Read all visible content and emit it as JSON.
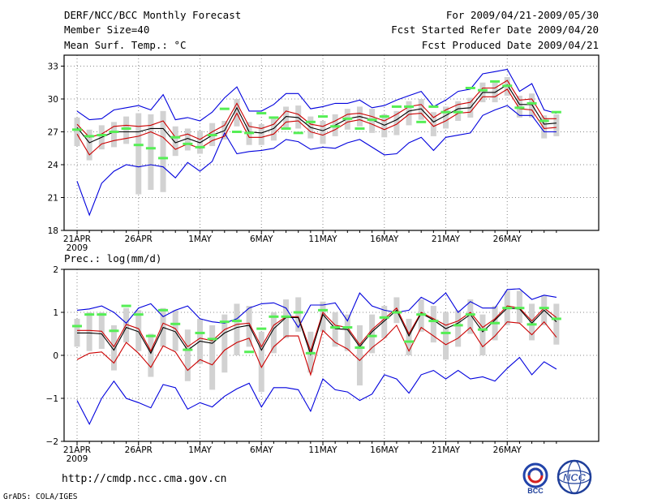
{
  "header": {
    "title": "DERF/NCC/BCC Monthly Forecast",
    "member_size": "Member Size=40",
    "variable": "Mean Surf. Temp.: °C",
    "forecast_period": "For 2009/04/21-2009/05/30",
    "start_date": "Fcst Started Refer Date 2009/04/20",
    "produced_date": "Fcst Produced Date 2009/04/21"
  },
  "footer": {
    "url": "http://cmdp.ncc.cma.gov.cn",
    "credit": "GrADS: COLA/IGES",
    "logo_bcc": "BCC",
    "logo_ncc": "NCC"
  },
  "colors": {
    "bar": "#d2d2d2",
    "green": "#55ee55",
    "blue": "#0000dd",
    "red": "#cc0000",
    "black": "#000000",
    "grid": "#888888"
  },
  "chart_data": [
    {
      "type": "line",
      "title": "Mean Surf. Temp.: °C",
      "ylabel": "°C",
      "ylim": [
        18,
        34
      ],
      "yticks": [
        18,
        21,
        24,
        27,
        30,
        33
      ],
      "x_tick_labels": [
        "21APR",
        "26APR",
        "1MAY",
        "6MAY",
        "11MAY",
        "16MAY",
        "21MAY",
        "26MAY"
      ],
      "x_year_label": "2009",
      "days": 40,
      "series": [
        {
          "name": "ensemble max",
          "color": "blue",
          "values": [
            28.9,
            28.1,
            28.2,
            29.0,
            29.2,
            29.4,
            29.0,
            30.4,
            28.1,
            28.3,
            28.0,
            28.8,
            30.1,
            31.1,
            28.9,
            28.9,
            29.5,
            30.5,
            30.5,
            29.1,
            29.3,
            29.6,
            29.6,
            29.9,
            29.2,
            29.4,
            29.9,
            30.3,
            30.7,
            29.3,
            29.9,
            30.7,
            30.9,
            32.3,
            32.5,
            32.7,
            30.7,
            31.4,
            29.0,
            28.7
          ]
        },
        {
          "name": "upper bound",
          "color": "red",
          "values": [
            27.7,
            26.5,
            26.8,
            27.5,
            27.6,
            27.5,
            27.6,
            28.0,
            26.5,
            26.8,
            26.3,
            27.0,
            27.6,
            29.6,
            27.5,
            27.3,
            27.7,
            28.9,
            28.6,
            27.7,
            27.5,
            28.0,
            28.6,
            28.7,
            28.4,
            28.0,
            28.6,
            29.3,
            29.5,
            28.3,
            29.0,
            29.5,
            29.7,
            31.0,
            31.0,
            31.7,
            29.9,
            30.0,
            28.2,
            28.2
          ]
        },
        {
          "name": "ensemble mean",
          "color": "black",
          "values": [
            27.4,
            26.0,
            26.5,
            27.0,
            27.0,
            27.0,
            27.3,
            27.3,
            26.0,
            26.4,
            26.0,
            26.7,
            27.1,
            29.2,
            27.0,
            26.9,
            27.3,
            28.4,
            28.3,
            27.4,
            27.1,
            27.6,
            28.2,
            28.4,
            28.1,
            27.6,
            28.1,
            28.9,
            29.1,
            27.9,
            28.5,
            29.1,
            29.2,
            30.6,
            30.6,
            31.3,
            29.5,
            29.5,
            27.7,
            27.8
          ]
        },
        {
          "name": "lower bound",
          "color": "red",
          "values": [
            26.8,
            24.9,
            25.9,
            26.2,
            26.4,
            26.6,
            27.0,
            26.5,
            25.4,
            25.9,
            25.5,
            26.2,
            26.6,
            28.7,
            26.5,
            26.5,
            26.8,
            27.9,
            28.0,
            27.0,
            26.7,
            27.2,
            27.9,
            28.1,
            27.7,
            27.2,
            27.7,
            28.6,
            28.7,
            27.5,
            28.0,
            28.7,
            28.8,
            30.2,
            30.2,
            30.9,
            29.1,
            29.0,
            27.3,
            27.4
          ]
        },
        {
          "name": "ensemble min",
          "color": "blue",
          "values": [
            22.5,
            19.4,
            22.3,
            23.4,
            24.0,
            23.8,
            24.0,
            23.8,
            22.8,
            24.2,
            23.4,
            24.3,
            26.9,
            25.0,
            25.2,
            25.3,
            25.5,
            26.3,
            26.1,
            25.4,
            25.6,
            25.5,
            26.0,
            26.3,
            25.6,
            24.9,
            25.0,
            26.0,
            26.5,
            25.3,
            26.5,
            26.7,
            26.9,
            28.5,
            29.0,
            29.4,
            28.5,
            28.5,
            27.0,
            27.0
          ]
        },
        {
          "name": "spread bar top",
          "color": "bar",
          "values": [
            28.3,
            27.2,
            27.6,
            27.9,
            28.4,
            28.7,
            28.6,
            28.9,
            27.5,
            27.3,
            27.1,
            27.8,
            28.0,
            30.0,
            27.9,
            27.7,
            28.2,
            29.3,
            29.4,
            28.4,
            28.0,
            28.6,
            29.1,
            29.3,
            29.1,
            28.6,
            28.9,
            29.8,
            30.0,
            28.8,
            29.3,
            29.8,
            30.1,
            31.5,
            31.5,
            32.0,
            30.3,
            30.5,
            28.5,
            28.6
          ]
        },
        {
          "name": "spread bar bottom",
          "color": "bar",
          "values": [
            25.7,
            24.4,
            25.4,
            25.6,
            25.9,
            21.3,
            21.7,
            21.5,
            24.8,
            25.3,
            25.0,
            25.7,
            26.3,
            27.5,
            25.8,
            25.8,
            26.2,
            27.3,
            27.3,
            26.4,
            25.9,
            26.6,
            27.2,
            27.5,
            26.9,
            26.5,
            26.7,
            27.6,
            28.1,
            26.6,
            27.3,
            28.0,
            28.3,
            29.7,
            29.7,
            30.3,
            28.3,
            28.3,
            26.4,
            26.6
          ]
        },
        {
          "name": "green marker",
          "color": "green",
          "values": [
            27.2,
            26.6,
            26.7,
            27.0,
            27.3,
            25.8,
            25.5,
            24.6,
            26.5,
            25.9,
            25.6,
            26.7,
            29.1,
            27.0,
            26.9,
            28.7,
            28.3,
            27.3,
            26.9,
            27.9,
            28.4,
            27.5,
            28.2,
            27.3,
            28.1,
            28.4,
            29.3,
            29.3,
            27.9,
            29.3,
            28.8,
            28.8,
            31.0,
            30.8,
            31.6,
            31.2,
            29.2,
            29.6,
            28.0,
            28.8
          ]
        }
      ]
    },
    {
      "type": "line",
      "title": "Prec.: log(mm/d)",
      "ylabel": "log(mm/d)",
      "ylim": [
        -2,
        2
      ],
      "yticks": [
        -2,
        -1,
        0,
        1,
        2
      ],
      "x_tick_labels": [
        "21APR",
        "26APR",
        "1MAY",
        "6MAY",
        "11MAY",
        "16MAY",
        "21MAY",
        "26MAY"
      ],
      "x_year_label": "2009",
      "days": 40,
      "series": [
        {
          "name": "ensemble max",
          "color": "blue",
          "values": [
            1.05,
            1.08,
            1.15,
            1.0,
            0.75,
            1.1,
            1.2,
            0.9,
            1.05,
            1.15,
            0.85,
            0.78,
            0.75,
            0.85,
            1.1,
            1.2,
            1.22,
            1.1,
            0.65,
            1.17,
            1.17,
            1.22,
            0.8,
            1.45,
            1.15,
            1.05,
            1.0,
            1.05,
            1.35,
            1.2,
            1.45,
            1.0,
            1.25,
            1.1,
            1.1,
            1.53,
            1.55,
            1.3,
            1.4,
            1.35
          ]
        },
        {
          "name": "upper bound",
          "color": "red",
          "values": [
            0.58,
            0.58,
            0.56,
            0.2,
            0.72,
            0.62,
            0.1,
            0.75,
            0.62,
            0.2,
            0.4,
            0.34,
            0.6,
            0.72,
            0.75,
            0.2,
            0.7,
            0.9,
            0.9,
            0.1,
            1.0,
            0.7,
            0.65,
            0.25,
            0.6,
            0.85,
            1.1,
            0.5,
            1.0,
            0.85,
            0.7,
            0.8,
            1.0,
            0.65,
            0.85,
            1.15,
            1.1,
            0.8,
            1.1,
            0.88
          ]
        },
        {
          "name": "ensemble mean",
          "color": "black",
          "values": [
            0.52,
            0.52,
            0.5,
            0.12,
            0.65,
            0.55,
            0.05,
            0.65,
            0.55,
            0.12,
            0.33,
            0.28,
            0.52,
            0.65,
            0.7,
            0.12,
            0.62,
            0.88,
            0.88,
            0.02,
            0.95,
            0.62,
            0.6,
            0.2,
            0.55,
            0.8,
            1.05,
            0.45,
            0.98,
            0.82,
            0.62,
            0.75,
            0.95,
            0.55,
            0.82,
            1.1,
            1.08,
            0.75,
            1.05,
            0.78
          ]
        },
        {
          "name": "lower bound",
          "color": "red",
          "values": [
            -0.1,
            0.05,
            0.08,
            -0.18,
            0.3,
            0.05,
            -0.28,
            0.22,
            0.08,
            -0.35,
            -0.1,
            -0.22,
            0.12,
            0.3,
            0.4,
            -0.28,
            0.2,
            0.45,
            0.45,
            -0.45,
            0.58,
            0.3,
            0.15,
            -0.12,
            0.18,
            0.4,
            0.7,
            0.1,
            0.65,
            0.45,
            0.25,
            0.4,
            0.65,
            0.2,
            0.45,
            0.78,
            0.75,
            0.48,
            0.78,
            0.42
          ]
        },
        {
          "name": "ensemble min",
          "color": "blue",
          "values": [
            -1.05,
            -1.6,
            -1.0,
            -0.6,
            -1.0,
            -1.1,
            -1.22,
            -0.68,
            -0.75,
            -1.25,
            -1.1,
            -1.2,
            -0.95,
            -0.78,
            -0.65,
            -1.2,
            -0.75,
            -0.75,
            -0.8,
            -1.3,
            -0.55,
            -0.8,
            -0.85,
            -1.05,
            -0.9,
            -0.45,
            -0.55,
            -0.88,
            -0.45,
            -0.35,
            -0.55,
            -0.35,
            -0.55,
            -0.5,
            -0.6,
            -0.3,
            -0.05,
            -0.45,
            -0.15,
            -0.32
          ]
        },
        {
          "name": "spread bar top",
          "color": "bar",
          "values": [
            0.85,
            1.0,
            1.0,
            0.7,
            1.1,
            1.05,
            0.5,
            1.1,
            1.05,
            0.6,
            0.85,
            0.7,
            0.95,
            1.2,
            1.15,
            0.55,
            1.0,
            1.3,
            1.35,
            0.55,
            1.25,
            1.0,
            0.95,
            0.7,
            0.95,
            1.15,
            1.35,
            0.85,
            1.3,
            1.15,
            1.0,
            1.05,
            1.3,
            0.95,
            1.15,
            1.5,
            1.5,
            1.2,
            1.4,
            1.2
          ]
        },
        {
          "name": "spread bar bottom",
          "color": "bar",
          "values": [
            0.2,
            0.1,
            0.15,
            -0.35,
            0.3,
            0.1,
            -0.5,
            0.2,
            0.1,
            -0.6,
            -0.2,
            -0.8,
            -0.4,
            0.0,
            0.2,
            -0.85,
            0.05,
            0.4,
            0.55,
            -0.4,
            0.55,
            0.2,
            0.1,
            -0.7,
            0.05,
            0.4,
            0.75,
            0.0,
            0.55,
            0.3,
            -0.1,
            0.2,
            0.5,
            0.0,
            0.35,
            0.7,
            0.75,
            0.35,
            0.7,
            0.25
          ]
        },
        {
          "name": "green marker",
          "color": "green",
          "values": [
            0.68,
            0.95,
            0.95,
            0.57,
            1.15,
            0.95,
            0.45,
            1.05,
            0.73,
            0.13,
            0.52,
            0.38,
            0.78,
            0.8,
            0.08,
            0.62,
            0.9,
            0.9,
            1.0,
            0.05,
            1.05,
            0.65,
            0.65,
            0.18,
            0.45,
            0.88,
            1.0,
            0.32,
            0.95,
            0.8,
            0.52,
            0.7,
            0.95,
            0.6,
            0.75,
            1.1,
            1.1,
            0.72,
            1.1,
            0.85
          ]
        }
      ]
    }
  ]
}
